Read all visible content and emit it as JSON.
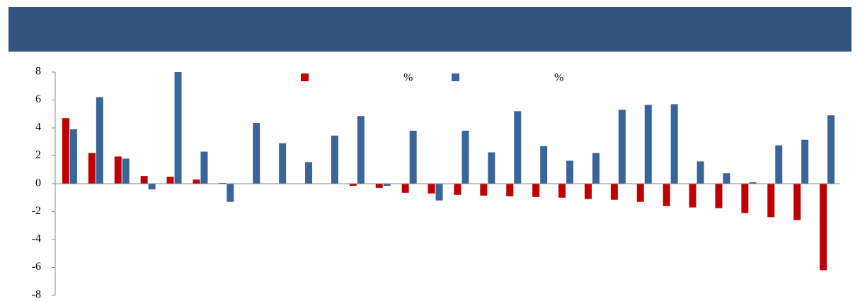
{
  "chart_data": {
    "type": "bar",
    "categories": [
      null,
      null,
      null,
      null,
      null,
      null,
      null,
      null,
      null,
      null,
      null,
      null,
      null,
      null,
      null,
      null,
      null,
      null,
      null,
      null,
      null,
      null,
      null,
      null,
      null,
      null,
      null,
      null,
      null,
      null
    ],
    "series": [
      {
        "name": "%",
        "color": "#c00000",
        "values": [
          4.7,
          2.2,
          1.95,
          0.55,
          0.5,
          0.3,
          0.05,
          0,
          0,
          0,
          0,
          -0.15,
          -0.3,
          -0.65,
          -0.7,
          -0.8,
          -0.85,
          -0.9,
          -0.95,
          -1.0,
          -1.1,
          -1.15,
          -1.3,
          -1.6,
          -1.7,
          -1.75,
          -2.1,
          -2.4,
          -2.6,
          -6.2
        ]
      },
      {
        "name": "%",
        "color": "#3a659a",
        "values": [
          3.9,
          6.2,
          1.8,
          -0.4,
          8.0,
          2.3,
          -1.3,
          4.35,
          2.9,
          1.55,
          3.45,
          4.85,
          -0.15,
          3.8,
          -1.2,
          3.8,
          2.25,
          5.2,
          2.7,
          1.65,
          2.2,
          5.3,
          5.65,
          5.7,
          1.6,
          0.75,
          0.1,
          2.75,
          3.15,
          4.9
        ]
      }
    ],
    "ylim": [
      -8,
      8
    ],
    "yticks": [
      -8,
      -6,
      -4,
      -2,
      0,
      2,
      4,
      6,
      8
    ],
    "grid": false
  }
}
